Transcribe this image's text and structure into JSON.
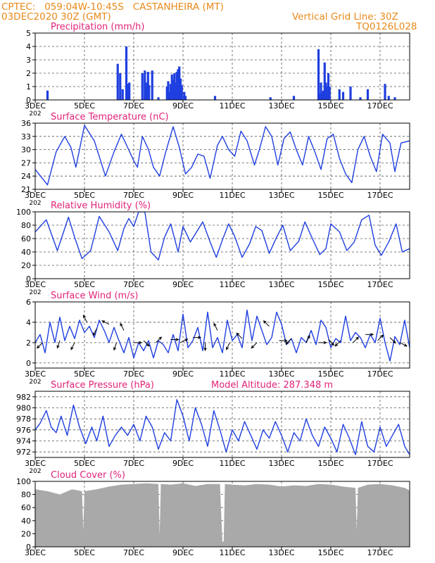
{
  "header": {
    "line1_left": "CPTEC:   059:04W-10:45S   CASTANHEIRA (MT)",
    "line2_left": "03DEC2020 30Z (GMT)",
    "line1_right": "Vertical Grid Line: 30Z",
    "line2_right": "TQ0126L028"
  },
  "colors": {
    "header": "#e8891a",
    "titles": "#e0237a",
    "series": "#1f3fe0",
    "cloud": "#a9a9a9",
    "wind_arrow": "#000000"
  },
  "x_axis": {
    "ticks": [
      "3DEC",
      "5DEC",
      "7DEC",
      "9DEC",
      "11DEC",
      "13DEC",
      "15DEC",
      "17DEC"
    ],
    "tick_days": [
      0,
      2,
      4,
      6,
      8,
      10,
      12,
      14
    ],
    "range_days": [
      0,
      15.2
    ],
    "truncated_year_label": "202"
  },
  "chart_data": [
    {
      "id": "precip",
      "type": "bar",
      "title": "Precipitation (mm/h)",
      "ylim": [
        0,
        5
      ],
      "yticks": [
        0,
        1,
        2,
        3,
        4,
        5
      ],
      "grid": true,
      "note": "x in days after 03DEC 00Z, hourly bars",
      "x": [
        0.5,
        3.35,
        3.45,
        3.55,
        3.7,
        3.75,
        3.82,
        4.35,
        4.45,
        4.5,
        4.58,
        4.62,
        4.75,
        5.0,
        5.35,
        5.4,
        5.45,
        5.5,
        5.55,
        5.6,
        5.65,
        5.7,
        5.75,
        5.8,
        5.85,
        5.9,
        5.95,
        6.05,
        6.1,
        7.3,
        9.55,
        10.5,
        11.5,
        11.55,
        11.6,
        11.65,
        11.7,
        11.75,
        11.8,
        11.85,
        11.9,
        11.95,
        12.35,
        12.5,
        12.8,
        13.2,
        13.5,
        14.2,
        14.35,
        14.6
      ],
      "y": [
        0.7,
        2.7,
        2.0,
        0.8,
        4.0,
        1.2,
        1.3,
        2.0,
        2.2,
        1.3,
        2.1,
        1.1,
        2.2,
        0.2,
        1.0,
        1.4,
        0.6,
        1.2,
        1.9,
        1.5,
        2.0,
        1.3,
        2.1,
        2.3,
        2.5,
        1.6,
        1.1,
        0.6,
        0.3,
        0.3,
        0.2,
        0.3,
        3.8,
        0.5,
        1.3,
        0.6,
        0.7,
        2.8,
        1.3,
        1.0,
        2.0,
        1.0,
        0.8,
        0.6,
        1.0,
        0.2,
        0.8,
        1.2,
        0.3,
        0.2
      ]
    },
    {
      "id": "temp",
      "type": "line",
      "title": "Surface Temperature (nC)",
      "ylim": [
        21,
        36
      ],
      "yticks": [
        21,
        24,
        27,
        30,
        33,
        36
      ],
      "grid": true,
      "x": [
        0,
        0.5,
        0.85,
        1.2,
        1.45,
        1.65,
        2.0,
        2.4,
        2.85,
        3.2,
        3.5,
        3.75,
        4.0,
        4.15,
        4.35,
        4.6,
        4.8,
        5.05,
        5.3,
        5.6,
        5.85,
        6.1,
        6.35,
        6.6,
        6.85,
        7.1,
        7.4,
        7.6,
        7.85,
        8.1,
        8.35,
        8.6,
        8.9,
        9.1,
        9.35,
        9.6,
        9.85,
        10.1,
        10.35,
        10.6,
        10.85,
        11.1,
        11.35,
        11.6,
        11.85,
        12.1,
        12.35,
        12.6,
        12.85,
        13.1,
        13.35,
        13.6,
        13.85,
        14.1,
        14.4,
        14.6,
        14.85,
        15.2
      ],
      "y": [
        25.5,
        22.0,
        29.5,
        33.0,
        30.5,
        26.0,
        35.5,
        32.0,
        24.0,
        29.5,
        33.5,
        30.5,
        27.5,
        26.0,
        33.0,
        30.0,
        26.0,
        24.0,
        29.5,
        35.2,
        30.5,
        24.5,
        26.0,
        29.0,
        28.5,
        23.5,
        31.0,
        33.0,
        30.0,
        28.5,
        34.2,
        32.0,
        26.5,
        30.0,
        35.2,
        33.0,
        26.5,
        32.5,
        34.0,
        30.0,
        26.5,
        33.0,
        29.5,
        25.5,
        32.5,
        33.5,
        28.0,
        24.5,
        22.5,
        30.0,
        33.0,
        28.5,
        25.0,
        33.5,
        31.5,
        25.0,
        31.5,
        32.0
      ]
    },
    {
      "id": "rh",
      "type": "line",
      "title": "Relative Humidity (%)",
      "ylim": [
        0,
        100
      ],
      "yticks": [
        0,
        20,
        40,
        60,
        80,
        100
      ],
      "grid": true,
      "x": [
        0,
        0.45,
        0.9,
        1.35,
        1.6,
        1.9,
        2.25,
        2.6,
        3.0,
        3.35,
        3.6,
        3.8,
        4.0,
        4.2,
        4.45,
        4.7,
        5.0,
        5.25,
        5.5,
        5.8,
        6.0,
        6.3,
        6.55,
        6.8,
        7.1,
        7.35,
        7.6,
        7.85,
        8.1,
        8.4,
        8.7,
        8.95,
        9.2,
        9.5,
        9.8,
        10.05,
        10.35,
        10.7,
        10.95,
        11.25,
        11.55,
        11.8,
        12.0,
        12.35,
        12.65,
        12.95,
        13.25,
        13.55,
        13.8,
        14.05,
        14.35,
        14.65,
        14.9,
        15.2
      ],
      "y": [
        70,
        88,
        42,
        92,
        62,
        30,
        42,
        93,
        70,
        42,
        75,
        90,
        78,
        100,
        100,
        40,
        28,
        62,
        82,
        40,
        78,
        55,
        70,
        85,
        55,
        32,
        58,
        82,
        63,
        32,
        52,
        78,
        72,
        38,
        62,
        80,
        42,
        56,
        85,
        60,
        36,
        45,
        82,
        70,
        42,
        55,
        88,
        95,
        50,
        35,
        55,
        82,
        40,
        45
      ]
    },
    {
      "id": "wind",
      "type": "line",
      "title": "Surface Wind (m/s)",
      "ylim": [
        -0.5,
        6
      ],
      "yticks": [
        0,
        2,
        4,
        6
      ],
      "grid": true,
      "x": [
        0,
        0.2,
        0.4,
        0.6,
        0.8,
        1.0,
        1.2,
        1.4,
        1.6,
        1.8,
        2.0,
        2.2,
        2.4,
        2.6,
        2.8,
        3.0,
        3.2,
        3.4,
        3.6,
        3.8,
        4.0,
        4.2,
        4.4,
        4.6,
        4.8,
        5.0,
        5.2,
        5.4,
        5.6,
        5.8,
        6.0,
        6.2,
        6.4,
        6.6,
        6.8,
        7.0,
        7.2,
        7.4,
        7.6,
        7.8,
        8.0,
        8.2,
        8.4,
        8.6,
        8.8,
        9.0,
        9.2,
        9.4,
        9.6,
        9.8,
        10.0,
        10.2,
        10.4,
        10.6,
        10.8,
        11.0,
        11.2,
        11.4,
        11.6,
        11.8,
        12.0,
        12.2,
        12.4,
        12.6,
        12.8,
        13.0,
        13.2,
        13.4,
        13.6,
        13.8,
        14.0,
        14.2,
        14.4,
        14.6,
        14.8,
        15.0,
        15.2
      ],
      "y": [
        2.0,
        2.8,
        1.0,
        4.0,
        2.0,
        4.5,
        2.2,
        3.6,
        2.4,
        4.2,
        3.0,
        3.6,
        2.5,
        4.2,
        3.2,
        2.0,
        3.5,
        2.2,
        1.0,
        2.5,
        0.5,
        2.0,
        1.2,
        2.2,
        0.5,
        2.2,
        1.8,
        1.0,
        2.8,
        1.2,
        4.8,
        1.5,
        2.2,
        3.5,
        1.2,
        5.0,
        1.5,
        2.5,
        1.0,
        4.2,
        2.2,
        2.8,
        1.5,
        5.2,
        2.2,
        4.6,
        3.2,
        1.8,
        2.5,
        5.0,
        3.8,
        1.8,
        2.4,
        1.0,
        2.5,
        2.0,
        3.2,
        1.8,
        4.2,
        3.5,
        1.5,
        2.4,
        2.0,
        4.6,
        2.2,
        3.0,
        2.5,
        1.5,
        2.8,
        2.0,
        4.4,
        2.0,
        0.2,
        2.6,
        1.8,
        4.2,
        1.5
      ]
    },
    {
      "id": "pressure",
      "type": "line",
      "title": "Surface Pressure (hPa)",
      "subtitle": "Model Altitude: 287.348  m",
      "ylim": [
        971,
        983
      ],
      "yticks": [
        972,
        974,
        976,
        978,
        980,
        982
      ],
      "grid": true,
      "x": [
        0,
        0.2,
        0.45,
        0.65,
        0.85,
        1.05,
        1.3,
        1.55,
        1.8,
        2.05,
        2.3,
        2.5,
        2.75,
        3.0,
        3.25,
        3.5,
        3.75,
        4.0,
        4.25,
        4.5,
        4.75,
        5.0,
        5.25,
        5.5,
        5.75,
        6.0,
        6.25,
        6.5,
        6.75,
        7.0,
        7.25,
        7.5,
        7.75,
        8.0,
        8.25,
        8.5,
        8.75,
        9.0,
        9.25,
        9.5,
        9.75,
        10.0,
        10.25,
        10.5,
        10.75,
        11.0,
        11.25,
        11.5,
        11.75,
        12.0,
        12.25,
        12.5,
        12.75,
        13.0,
        13.25,
        13.5,
        13.75,
        14.0,
        14.25,
        14.5,
        14.75,
        15.0,
        15.2
      ],
      "y": [
        976,
        977.2,
        979.5,
        976.5,
        975.5,
        978.5,
        975.0,
        980.5,
        976.5,
        973.5,
        976.5,
        974.0,
        978.5,
        973.0,
        975.0,
        976.5,
        975.0,
        977.0,
        974.0,
        978.5,
        976.5,
        972.5,
        975.5,
        974.0,
        981.5,
        978.5,
        974.0,
        980.0,
        977.0,
        973.0,
        979.5,
        976.0,
        972.0,
        976.0,
        974.0,
        977.5,
        975.0,
        972.5,
        976.0,
        974.5,
        977.5,
        975.0,
        972.0,
        975.5,
        974.0,
        978.0,
        975.0,
        973.0,
        976.5,
        974.5,
        972.0,
        977.0,
        974.5,
        971.5,
        977.5,
        973.0,
        972.0,
        976.5,
        973.0,
        975.0,
        977.0,
        973.0,
        971.5
      ]
    },
    {
      "id": "cloud",
      "type": "area",
      "title": "Cloud Cover (%)",
      "ylim": [
        0,
        100
      ],
      "yticks": [
        0,
        20,
        40,
        60,
        80,
        100
      ],
      "grid": true,
      "x": [
        0,
        0.5,
        1.0,
        1.5,
        1.9,
        1.95,
        2.0,
        2.5,
        3.0,
        3.5,
        4.0,
        4.5,
        5.0,
        5.05,
        5.1,
        5.5,
        6.0,
        6.5,
        7.0,
        7.5,
        7.6,
        7.65,
        7.7,
        8.0,
        8.5,
        9.0,
        9.5,
        10.0,
        10.5,
        11.0,
        11.5,
        12.0,
        12.5,
        13.0,
        13.05,
        13.1,
        13.5,
        14.0,
        14.5,
        15.0,
        15.2
      ],
      "y": [
        88,
        85,
        80,
        88,
        85,
        25,
        85,
        88,
        92,
        95,
        96,
        97,
        96,
        18,
        96,
        95,
        97,
        93,
        96,
        96,
        8,
        8,
        96,
        95,
        94,
        96,
        95,
        92,
        94,
        93,
        96,
        95,
        92,
        90,
        25,
        90,
        95,
        96,
        94,
        90,
        86
      ]
    }
  ],
  "wind_arrows": {
    "note": "direction vectors (u, v) drawn on the wind panel",
    "x": [
      0.3,
      1.0,
      1.6,
      2.1,
      2.5,
      3.0,
      3.3,
      3.6,
      4.0,
      4.4,
      4.9,
      5.5,
      5.9,
      6.4,
      6.9,
      7.4,
      7.9,
      8.4,
      9.0,
      9.5,
      9.9,
      10.4,
      11.0,
      11.5,
      11.9,
      12.4,
      12.9,
      13.4,
      13.9,
      14.4,
      14.8
    ],
    "y": [
      2.0,
      2.2,
      2.0,
      4.0,
      3.4,
      3.8,
      2.0,
      3.2,
      2.0,
      2.2,
      2.0,
      2.3,
      2.0,
      2.5,
      2.0,
      3.2,
      2.0,
      2.4,
      2.0,
      3.6,
      2.2,
      2.4,
      2.0,
      2.0,
      2.3,
      2.2,
      2.0,
      2.8,
      2.2,
      2.5,
      2.0
    ],
    "u": [
      -1,
      -1,
      -1,
      -1,
      -1,
      -2,
      -1,
      -1,
      1,
      1,
      1,
      1,
      2,
      1,
      0,
      -1,
      -1,
      -1,
      -1,
      -1,
      1,
      -1,
      1,
      1,
      1,
      -1,
      1,
      1,
      1,
      1,
      2
    ],
    "v": [
      -1,
      -3,
      -2,
      2,
      -2,
      1,
      -3,
      2,
      0,
      -1,
      1,
      0,
      1,
      0,
      -1,
      2,
      -2,
      1,
      -1,
      1,
      0,
      -1,
      2,
      0,
      -1,
      -1,
      1,
      0,
      1,
      -1,
      -1
    ]
  }
}
